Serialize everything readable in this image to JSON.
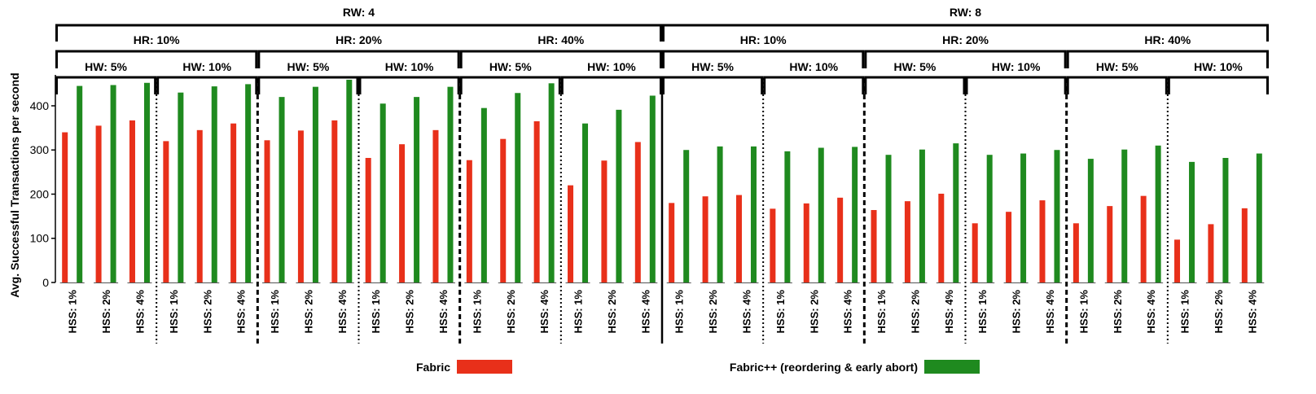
{
  "chart_data": {
    "type": "bar",
    "ylabel": "Avg. Successful Transactions per second",
    "xlabel": "",
    "ylim": [
      0,
      470
    ],
    "yticks": [
      0,
      100,
      200,
      300,
      400
    ],
    "legend_position": "bottom",
    "grid": false,
    "series": [
      {
        "name": "Fabric",
        "color": "#e8301a"
      },
      {
        "name": "Fabric++ (reordering & early abort)",
        "color": "#1f8a1f"
      }
    ],
    "levels": {
      "rw": [
        {
          "label": "RW: 4",
          "start": 0,
          "count": 18
        },
        {
          "label": "RW: 8",
          "start": 18,
          "count": 18
        }
      ],
      "hr": [
        {
          "label": "HR: 10%",
          "start": 0,
          "count": 6
        },
        {
          "label": "HR: 20%",
          "start": 6,
          "count": 6
        },
        {
          "label": "HR: 40%",
          "start": 12,
          "count": 6
        },
        {
          "label": "HR: 10%",
          "start": 18,
          "count": 6
        },
        {
          "label": "HR: 20%",
          "start": 24,
          "count": 6
        },
        {
          "label": "HR: 40%",
          "start": 30,
          "count": 6
        }
      ],
      "hw": [
        {
          "label": "HW: 5%",
          "start": 0,
          "count": 3
        },
        {
          "label": "HW: 10%",
          "start": 3,
          "count": 3
        },
        {
          "label": "HW: 5%",
          "start": 6,
          "count": 3
        },
        {
          "label": "HW: 10%",
          "start": 9,
          "count": 3
        },
        {
          "label": "HW: 5%",
          "start": 12,
          "count": 3
        },
        {
          "label": "HW: 10%",
          "start": 15,
          "count": 3
        },
        {
          "label": "HW: 5%",
          "start": 18,
          "count": 3
        },
        {
          "label": "HW: 10%",
          "start": 21,
          "count": 3
        },
        {
          "label": "HW: 5%",
          "start": 24,
          "count": 3
        },
        {
          "label": "HW: 10%",
          "start": 27,
          "count": 3
        },
        {
          "label": "HW: 5%",
          "start": 30,
          "count": 3
        },
        {
          "label": "HW: 10%",
          "start": 33,
          "count": 3
        }
      ]
    },
    "categories": [
      "HSS: 1%",
      "HSS: 2%",
      "HSS: 4%",
      "HSS: 1%",
      "HSS: 2%",
      "HSS: 4%",
      "HSS: 1%",
      "HSS: 2%",
      "HSS: 4%",
      "HSS: 1%",
      "HSS: 2%",
      "HSS: 4%",
      "HSS: 1%",
      "HSS: 2%",
      "HSS: 4%",
      "HSS: 1%",
      "HSS: 2%",
      "HSS: 4%",
      "HSS: 1%",
      "HSS: 2%",
      "HSS: 4%",
      "HSS: 1%",
      "HSS: 2%",
      "HSS: 4%",
      "HSS: 1%",
      "HSS: 2%",
      "HSS: 4%",
      "HSS: 1%",
      "HSS: 2%",
      "HSS: 4%",
      "HSS: 1%",
      "HSS: 2%",
      "HSS: 4%",
      "HSS: 1%",
      "HSS: 2%",
      "HSS: 4%"
    ],
    "values": {
      "Fabric": [
        340,
        355,
        367,
        320,
        345,
        360,
        322,
        344,
        367,
        282,
        313,
        345,
        277,
        325,
        365,
        220,
        276,
        318,
        180,
        195,
        198,
        167,
        179,
        192,
        164,
        184,
        201,
        134,
        160,
        186,
        134,
        173,
        196,
        97,
        132,
        168
      ],
      "Fabric++ (reordering & early abort)": [
        445,
        447,
        452,
        430,
        444,
        449,
        420,
        443,
        459,
        405,
        420,
        443,
        395,
        429,
        451,
        360,
        391,
        423,
        300,
        308,
        308,
        297,
        305,
        307,
        289,
        301,
        315,
        289,
        292,
        300,
        280,
        301,
        310,
        273,
        282,
        292
      ]
    }
  }
}
